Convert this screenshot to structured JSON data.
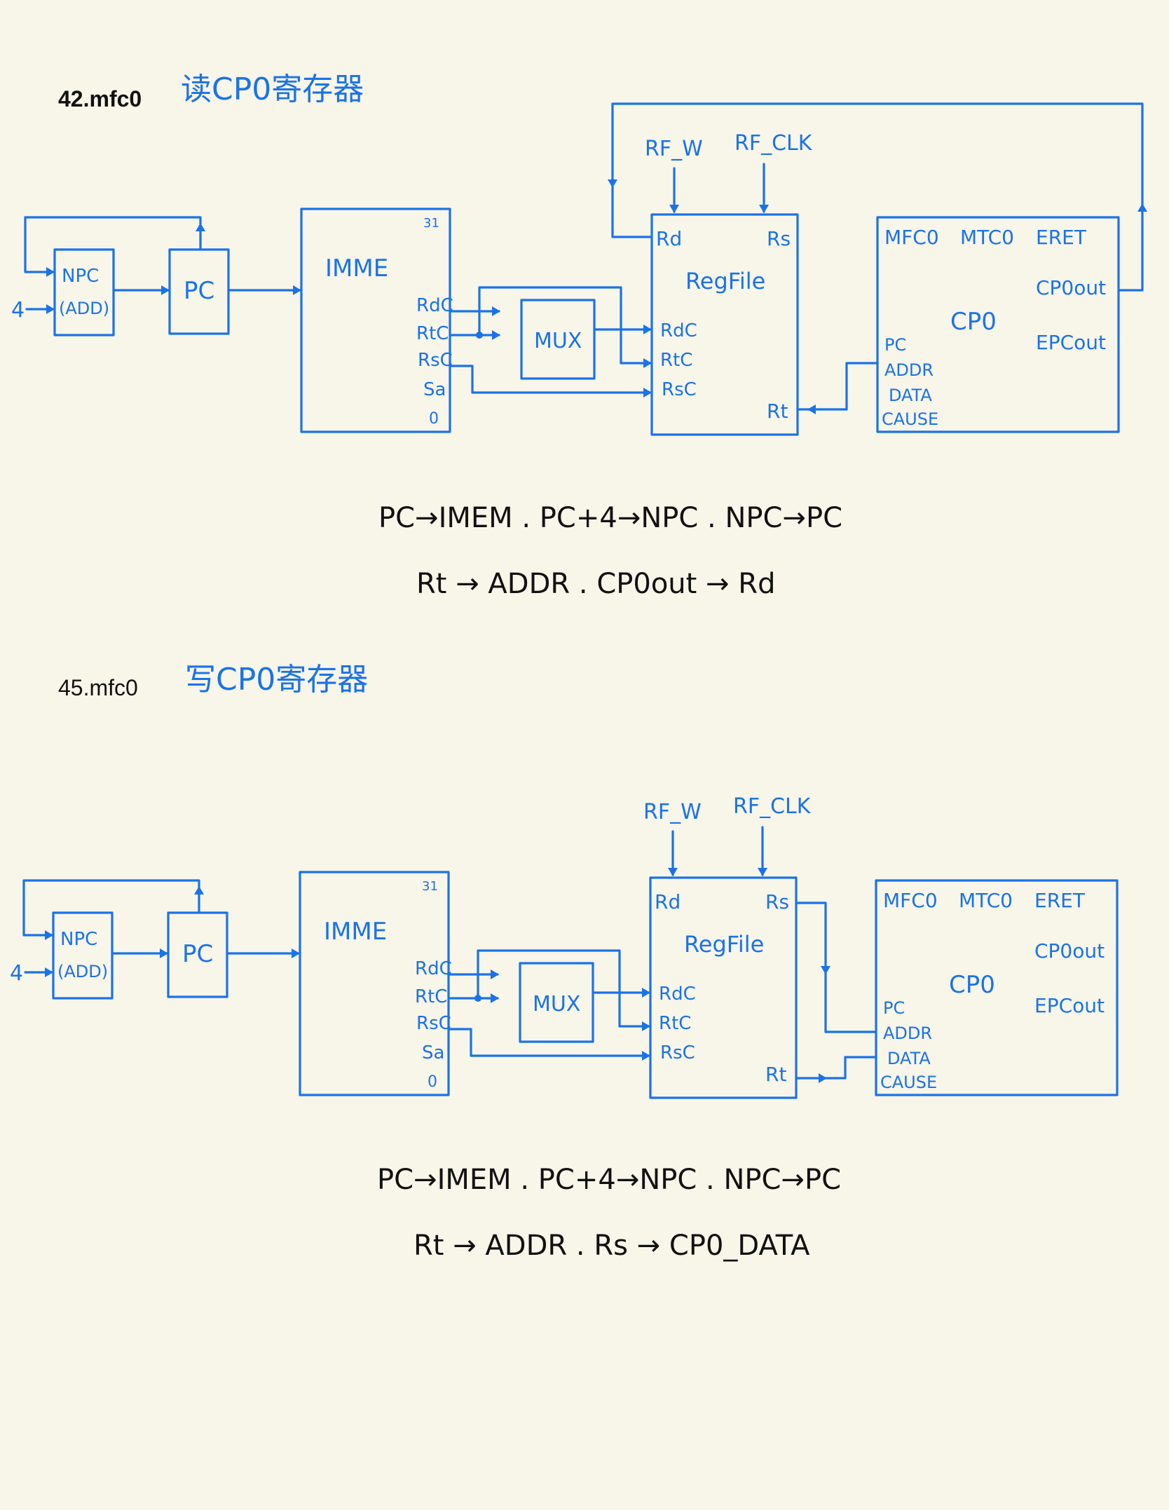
{
  "colors": {
    "background": "#f8f5e9",
    "ink_blue": "#1a73e8",
    "ink_black": "#111111"
  },
  "sections": [
    {
      "id": "read",
      "heading": "42.mfc0",
      "note": "读CP0寄存器",
      "signals": {
        "rf_w": "RF_W",
        "rf_clk": "RF_CLK"
      },
      "npc": {
        "label": "NPC",
        "sub": "(ADD)",
        "input": "4"
      },
      "pc": {
        "label": "PC"
      },
      "imem": {
        "title": "IMME",
        "bit31": "31",
        "bit0": "0",
        "ports": [
          "RdC",
          "RtC",
          "RsC",
          "Sa"
        ]
      },
      "mux": {
        "label": "MUX"
      },
      "regfile": {
        "title": "RegFile",
        "rd": "Rd",
        "rs": "Rs",
        "rt": "Rt",
        "ports": [
          "RdC",
          "RtC",
          "RsC"
        ]
      },
      "cp0": {
        "name": "CP0",
        "top": [
          "MFC0",
          "MTC0",
          "ERET"
        ],
        "outs": [
          "CP0out",
          "EPCout"
        ],
        "ins": [
          "PC",
          "ADDR",
          "DATA",
          "CAUSE"
        ]
      },
      "equations": [
        "PC→IMEM . PC+4→NPC . NPC→PC",
        "Rt → ADDR . CP0out → Rd"
      ]
    },
    {
      "id": "write",
      "heading": "45.mfc0",
      "note": "写CP0寄存器",
      "signals": {
        "rf_w": "RF_W",
        "rf_clk": "RF_CLK"
      },
      "npc": {
        "label": "NPC",
        "sub": "(ADD)",
        "input": "4"
      },
      "pc": {
        "label": "PC"
      },
      "imem": {
        "title": "IMME",
        "bit31": "31",
        "bit0": "0",
        "ports": [
          "RdC",
          "RtC",
          "RsC",
          "Sa"
        ]
      },
      "mux": {
        "label": "MUX"
      },
      "regfile": {
        "title": "RegFile",
        "rd": "Rd",
        "rs": "Rs",
        "rt": "Rt",
        "ports": [
          "RdC",
          "RtC",
          "RsC"
        ]
      },
      "cp0": {
        "name": "CP0",
        "top": [
          "MFC0",
          "MTC0",
          "ERET"
        ],
        "outs": [
          "CP0out",
          "EPCout"
        ],
        "ins": [
          "PC",
          "ADDR",
          "DATA",
          "CAUSE"
        ]
      },
      "equations": [
        "PC→IMEM . PC+4→NPC . NPC→PC",
        "Rt → ADDR . Rs → CP0_DATA"
      ]
    }
  ]
}
